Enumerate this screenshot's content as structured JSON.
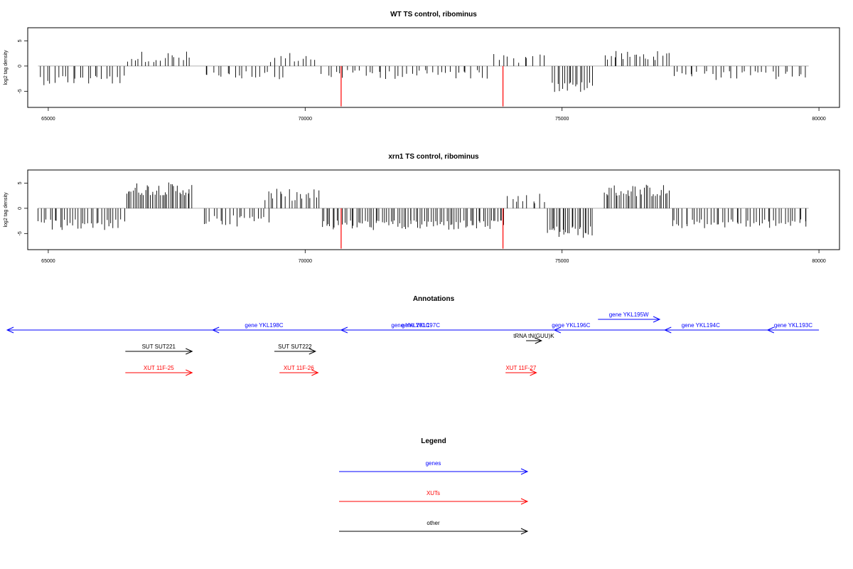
{
  "chart_data": [
    {
      "type": "bar",
      "title": "WT TS control, ribominus",
      "ylabel": "log2 tag density",
      "xlim": [
        64600,
        80400
      ],
      "ylim": [
        -8.2,
        7.6
      ],
      "xticks": [
        "65000",
        "70000",
        "75000",
        "80000"
      ],
      "yticks": [
        "-5",
        "0",
        "5"
      ],
      "segments": [
        {
          "from": 64800,
          "to": 66500,
          "sign": -1,
          "base": 1.8,
          "amp": 2.0,
          "density": 14
        },
        {
          "from": 66500,
          "to": 67800,
          "sign": 1,
          "base": 0.8,
          "amp": 2.2,
          "density": 14
        },
        {
          "from": 68000,
          "to": 69600,
          "sign": -1,
          "base": 0.8,
          "amp": 1.8,
          "density": 12
        },
        {
          "from": 69300,
          "to": 70250,
          "sign": 1,
          "base": 0.8,
          "amp": 2.0,
          "density": 12
        },
        {
          "from": 70300,
          "to": 73600,
          "sign": -1,
          "base": 0.8,
          "amp": 1.8,
          "density": 12
        },
        {
          "from": 73600,
          "to": 74700,
          "sign": 1,
          "base": 0.6,
          "amp": 1.8,
          "density": 10
        },
        {
          "from": 74800,
          "to": 75600,
          "sign": -1,
          "base": 3.2,
          "amp": 2.2,
          "density": 22
        },
        {
          "from": 75800,
          "to": 77100,
          "sign": 1,
          "base": 1.2,
          "amp": 1.8,
          "density": 16
        },
        {
          "from": 77100,
          "to": 79800,
          "sign": -1,
          "base": 1.0,
          "amp": 1.8,
          "density": 12
        }
      ],
      "highlights": [
        {
          "x": 70700,
          "y": -8.0
        },
        {
          "x": 73850,
          "y": -8.0
        }
      ],
      "grid": false,
      "legend": "none"
    },
    {
      "type": "bar",
      "title": "xrn1 TS control, ribominus",
      "ylabel": "log2 tag density",
      "xlim": [
        64600,
        80400
      ],
      "ylim": [
        -8.2,
        7.6
      ],
      "xticks": [
        "65000",
        "70000",
        "75000",
        "80000"
      ],
      "yticks": [
        "-5",
        "0",
        "5"
      ],
      "segments": [
        {
          "from": 64800,
          "to": 66500,
          "sign": -1,
          "base": 2.2,
          "amp": 2.2,
          "density": 20
        },
        {
          "from": 66500,
          "to": 67800,
          "sign": 1,
          "base": 2.6,
          "amp": 2.6,
          "density": 30
        },
        {
          "from": 68000,
          "to": 69300,
          "sign": -1,
          "base": 1.4,
          "amp": 2.2,
          "density": 16
        },
        {
          "from": 69200,
          "to": 70300,
          "sign": 1,
          "base": 1.5,
          "amp": 2.4,
          "density": 18
        },
        {
          "from": 70300,
          "to": 73900,
          "sign": -1,
          "base": 2.4,
          "amp": 2.0,
          "density": 24
        },
        {
          "from": 73900,
          "to": 74700,
          "sign": 1,
          "base": 1.0,
          "amp": 2.2,
          "density": 12
        },
        {
          "from": 74700,
          "to": 75600,
          "sign": -1,
          "base": 3.6,
          "amp": 2.4,
          "density": 28
        },
        {
          "from": 75800,
          "to": 77100,
          "sign": 1,
          "base": 2.4,
          "amp": 2.4,
          "density": 26
        },
        {
          "from": 77100,
          "to": 79800,
          "sign": -1,
          "base": 2.2,
          "amp": 1.8,
          "density": 18
        }
      ],
      "highlights": [
        {
          "x": 70700,
          "y": -8.0
        },
        {
          "x": 73850,
          "y": -8.0
        }
      ],
      "grid": false,
      "legend": "none"
    }
  ],
  "annotations": {
    "title": "Annotations",
    "features": [
      {
        "label": "gene YKL201C",
        "type": "genes",
        "start": 79900,
        "end": 64200,
        "row": 0
      },
      {
        "label": "gene YKL198C",
        "type": "genes",
        "start": 70200,
        "end": 68200,
        "row": 0
      },
      {
        "label": "gene YKL197C",
        "type": "genes",
        "start": 73800,
        "end": 70700,
        "row": 0
      },
      {
        "label": "gene YKL196C",
        "type": "genes",
        "start": 75500,
        "end": 74850,
        "row": 0
      },
      {
        "label": "gene YKL195W",
        "type": "genes",
        "start": 75700,
        "end": 76900,
        "row": -1
      },
      {
        "label": "gene YKL194C",
        "type": "genes",
        "start": 78400,
        "end": 77000,
        "row": 0
      },
      {
        "label": "gene YKL193C",
        "type": "genes",
        "start": 80000,
        "end": 79000,
        "row": 0
      },
      {
        "label": "tRNA tN(GUU)K",
        "type": "other",
        "start": 74300,
        "end": 74600,
        "row": 1
      },
      {
        "label": "SUT SUT221",
        "type": "other",
        "start": 66500,
        "end": 67800,
        "row": 2
      },
      {
        "label": "SUT SUT222",
        "type": "other",
        "start": 69400,
        "end": 70200,
        "row": 2
      },
      {
        "label": "XUT 11F-25",
        "type": "XUTs",
        "start": 66500,
        "end": 67800,
        "row": 4
      },
      {
        "label": "XUT 11F-26",
        "type": "XUTs",
        "start": 69500,
        "end": 70250,
        "row": 4
      },
      {
        "label": "XUT 11F-27",
        "type": "XUTs",
        "start": 73900,
        "end": 74500,
        "row": 4
      }
    ]
  },
  "legend": {
    "title": "Legend",
    "items": [
      {
        "label": "genes",
        "color": "#0000ff"
      },
      {
        "label": "XUTs",
        "color": "#ff0000"
      },
      {
        "label": "other",
        "color": "#000000"
      }
    ]
  },
  "colors": {
    "genes": "#0000ff",
    "XUTs": "#ff0000",
    "other": "#000000",
    "bars": "#000000",
    "highlight": "#ff0000"
  }
}
